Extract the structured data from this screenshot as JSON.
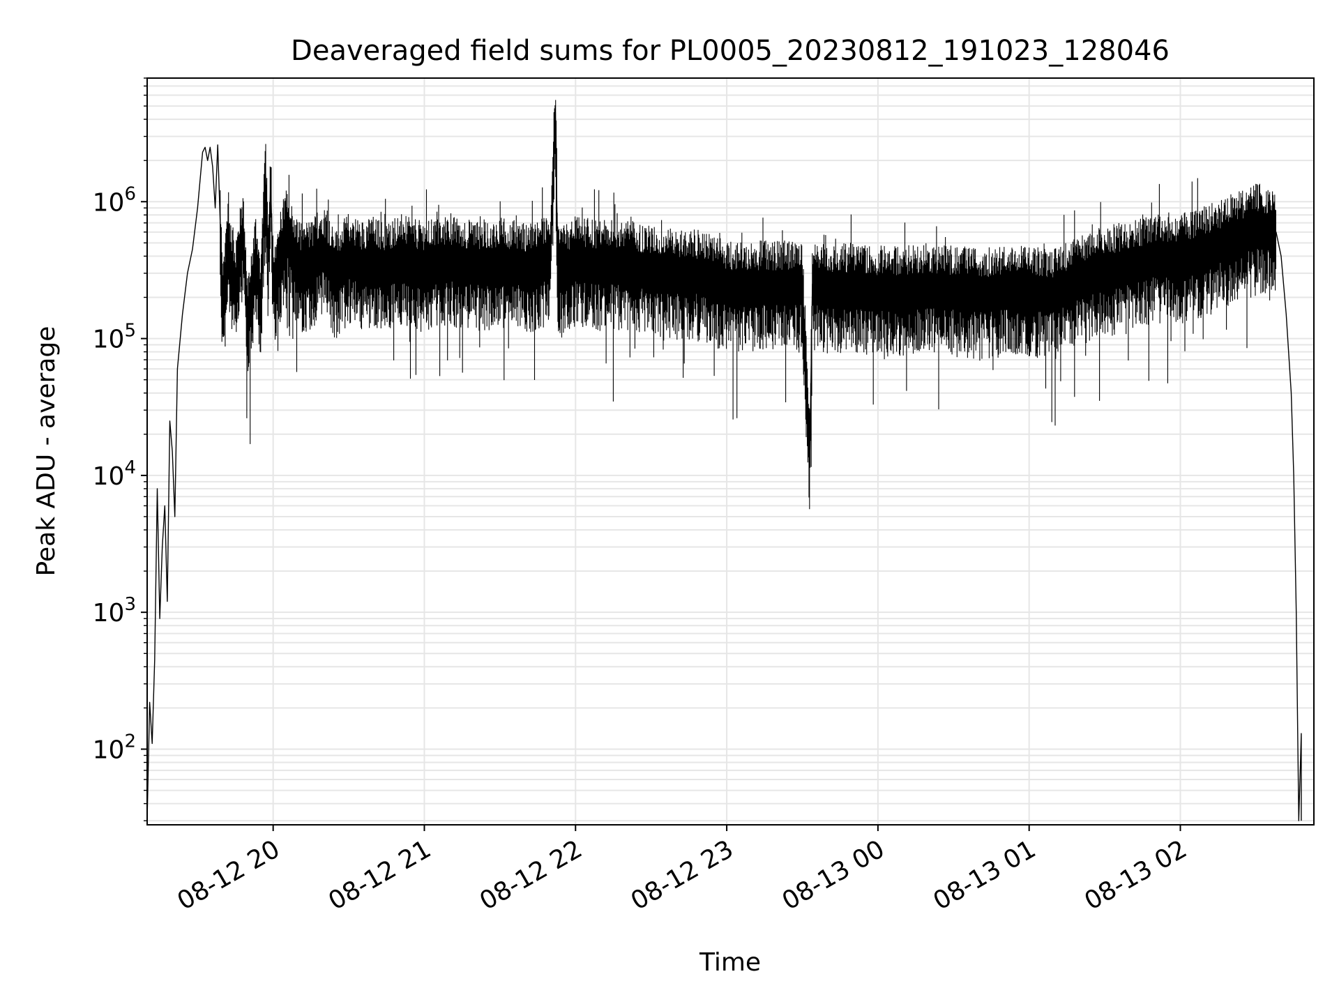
{
  "chart_data": {
    "type": "line",
    "title": "Deaveraged field sums for PL0005_20230812_191023_128046",
    "xlabel": "Time",
    "ylabel": "Peak ADU - average",
    "x_ticks": [
      "08-12 20",
      "08-12 21",
      "08-12 22",
      "08-12 23",
      "08-13 00",
      "08-13 01",
      "08-13 02"
    ],
    "y_scale": "log",
    "y_ticks": [
      {
        "value": 100,
        "base": "10",
        "exp": "2"
      },
      {
        "value": 1000,
        "base": "10",
        "exp": "3"
      },
      {
        "value": 10000,
        "base": "10",
        "exp": "4"
      },
      {
        "value": 100000,
        "base": "10",
        "exp": "5"
      },
      {
        "value": 1000000,
        "base": "10",
        "exp": "6"
      }
    ],
    "xlim": [
      "2023-08-12 19:10",
      "2023-08-13 02:53"
    ],
    "ylim": [
      28,
      8000000
    ],
    "grid": true,
    "line_color": "#000000",
    "grid_color": "#e6e6e6",
    "series": [
      {
        "name": "",
        "points": [
          [
            "2023-08-12 19:10",
            30
          ],
          [
            "2023-08-12 19:11",
            220
          ],
          [
            "2023-08-12 19:12",
            110
          ],
          [
            "2023-08-12 19:13",
            450
          ],
          [
            "2023-08-12 19:14",
            8000
          ],
          [
            "2023-08-12 19:15",
            900
          ],
          [
            "2023-08-12 19:16",
            3000
          ],
          [
            "2023-08-12 19:17",
            6000
          ],
          [
            "2023-08-12 19:18",
            1200
          ],
          [
            "2023-08-12 19:19",
            25000
          ],
          [
            "2023-08-12 19:20",
            15000
          ],
          [
            "2023-08-12 19:21",
            5000
          ],
          [
            "2023-08-12 19:22",
            60000
          ],
          [
            "2023-08-12 19:24",
            150000
          ],
          [
            "2023-08-12 19:26",
            300000
          ],
          [
            "2023-08-12 19:28",
            450000
          ],
          [
            "2023-08-12 19:30",
            900000
          ],
          [
            "2023-08-12 19:32",
            2300000
          ],
          [
            "2023-08-12 19:33",
            2500000
          ],
          [
            "2023-08-12 19:34",
            2000000
          ],
          [
            "2023-08-12 19:35",
            2500000
          ],
          [
            "2023-08-12 19:36",
            1800000
          ],
          [
            "2023-08-12 19:37",
            900000
          ],
          [
            "2023-08-12 19:38",
            2600000
          ],
          [
            "2023-08-12 19:39",
            700000
          ],
          [
            "2023-08-12 19:40",
            150000
          ],
          [
            "2023-08-12 19:42",
            500000
          ],
          [
            "2023-08-12 19:45",
            250000
          ],
          [
            "2023-08-12 19:48",
            600000
          ],
          [
            "2023-08-12 19:50",
            130000
          ],
          [
            "2023-08-12 19:53",
            400000
          ],
          [
            "2023-08-12 19:55",
            200000
          ],
          [
            "2023-08-12 19:57",
            1600000
          ],
          [
            "2023-08-12 19:58",
            300000
          ],
          [
            "2023-08-12 19:59",
            1400000
          ],
          [
            "2023-08-12 20:00",
            250000
          ],
          [
            "2023-08-12 20:05",
            600000
          ],
          [
            "2023-08-12 20:10",
            350000
          ],
          [
            "2023-08-12 20:15",
            350000
          ],
          [
            "2023-08-12 20:20",
            450000
          ],
          [
            "2023-08-12 20:25",
            300000
          ],
          [
            "2023-08-12 20:30",
            400000
          ],
          [
            "2023-08-12 20:35",
            350000
          ],
          [
            "2023-08-12 20:40",
            380000
          ],
          [
            "2023-08-12 20:45",
            330000
          ],
          [
            "2023-08-12 20:50",
            400000
          ],
          [
            "2023-08-12 20:55",
            360000
          ],
          [
            "2023-08-12 21:00",
            350000
          ],
          [
            "2023-08-12 21:10",
            380000
          ],
          [
            "2023-08-12 21:20",
            350000
          ],
          [
            "2023-08-12 21:30",
            370000
          ],
          [
            "2023-08-12 21:40",
            340000
          ],
          [
            "2023-08-12 21:50",
            380000
          ],
          [
            "2023-08-12 21:52",
            4500000
          ],
          [
            "2023-08-12 21:53",
            300000
          ],
          [
            "2023-08-12 22:00",
            380000
          ],
          [
            "2023-08-12 22:10",
            350000
          ],
          [
            "2023-08-12 22:20",
            360000
          ],
          [
            "2023-08-12 22:30",
            320000
          ],
          [
            "2023-08-12 22:40",
            300000
          ],
          [
            "2023-08-12 22:50",
            300000
          ],
          [
            "2023-08-12 23:00",
            250000
          ],
          [
            "2023-08-12 23:10",
            250000
          ],
          [
            "2023-08-12 23:20",
            250000
          ],
          [
            "2023-08-12 23:30",
            250000
          ],
          [
            "2023-08-12 23:33",
            15000
          ],
          [
            "2023-08-12 23:34",
            250000
          ],
          [
            "2023-08-12 23:40",
            240000
          ],
          [
            "2023-08-12 23:50",
            240000
          ],
          [
            "2023-08-13 00:00",
            230000
          ],
          [
            "2023-08-13 00:10",
            230000
          ],
          [
            "2023-08-13 00:20",
            240000
          ],
          [
            "2023-08-13 00:30",
            230000
          ],
          [
            "2023-08-13 00:40",
            220000
          ],
          [
            "2023-08-13 00:50",
            230000
          ],
          [
            "2023-08-13 01:00",
            230000
          ],
          [
            "2023-08-13 01:10",
            220000
          ],
          [
            "2023-08-13 01:20",
            280000
          ],
          [
            "2023-08-13 01:30",
            320000
          ],
          [
            "2023-08-13 01:40",
            350000
          ],
          [
            "2023-08-13 01:50",
            400000
          ],
          [
            "2023-08-13 02:00",
            400000
          ],
          [
            "2023-08-13 02:10",
            450000
          ],
          [
            "2023-08-13 02:20",
            550000
          ],
          [
            "2023-08-13 02:30",
            650000
          ],
          [
            "2023-08-13 02:35",
            650000
          ],
          [
            "2023-08-13 02:38",
            600000
          ],
          [
            "2023-08-13 02:40",
            400000
          ],
          [
            "2023-08-13 02:42",
            150000
          ],
          [
            "2023-08-13 02:44",
            40000
          ],
          [
            "2023-08-13 02:45",
            10000
          ],
          [
            "2023-08-13 02:46",
            1000
          ],
          [
            "2023-08-13 02:47",
            30
          ],
          [
            "2023-08-13 02:48",
            130
          ],
          [
            "2023-08-13 02:48",
            30
          ]
        ]
      }
    ]
  }
}
